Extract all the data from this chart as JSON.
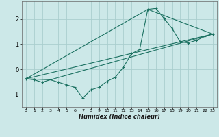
{
  "xlabel": "Humidex (Indice chaleur)",
  "bg_color": "#cce8e8",
  "grid_color": "#aacece",
  "line_color": "#1a7060",
  "xlim": [
    -0.5,
    23.5
  ],
  "ylim": [
    -1.5,
    2.7
  ],
  "xticks": [
    0,
    1,
    2,
    3,
    4,
    5,
    6,
    7,
    8,
    9,
    10,
    11,
    12,
    13,
    14,
    15,
    16,
    17,
    18,
    19,
    20,
    21,
    22,
    23
  ],
  "yticks": [
    -1,
    0,
    1,
    2
  ],
  "main_line": {
    "x": [
      0,
      1,
      2,
      3,
      4,
      5,
      6,
      7,
      8,
      9,
      10,
      11,
      12,
      13,
      14,
      15,
      16,
      17,
      18,
      19,
      20,
      21,
      22,
      23
    ],
    "y": [
      -0.38,
      -0.42,
      -0.52,
      -0.42,
      -0.52,
      -0.62,
      -0.72,
      -1.15,
      -0.82,
      -0.72,
      -0.48,
      -0.32,
      0.08,
      0.62,
      0.78,
      2.38,
      2.42,
      2.02,
      1.62,
      1.08,
      1.05,
      1.15,
      1.3,
      1.4
    ]
  },
  "extra_lines": [
    {
      "x": [
        0,
        3,
        23
      ],
      "y": [
        -0.38,
        -0.42,
        1.4
      ]
    },
    {
      "x": [
        0,
        15,
        23
      ],
      "y": [
        -0.38,
        2.38,
        1.4
      ]
    },
    {
      "x": [
        0,
        23
      ],
      "y": [
        -0.38,
        1.4
      ]
    }
  ]
}
